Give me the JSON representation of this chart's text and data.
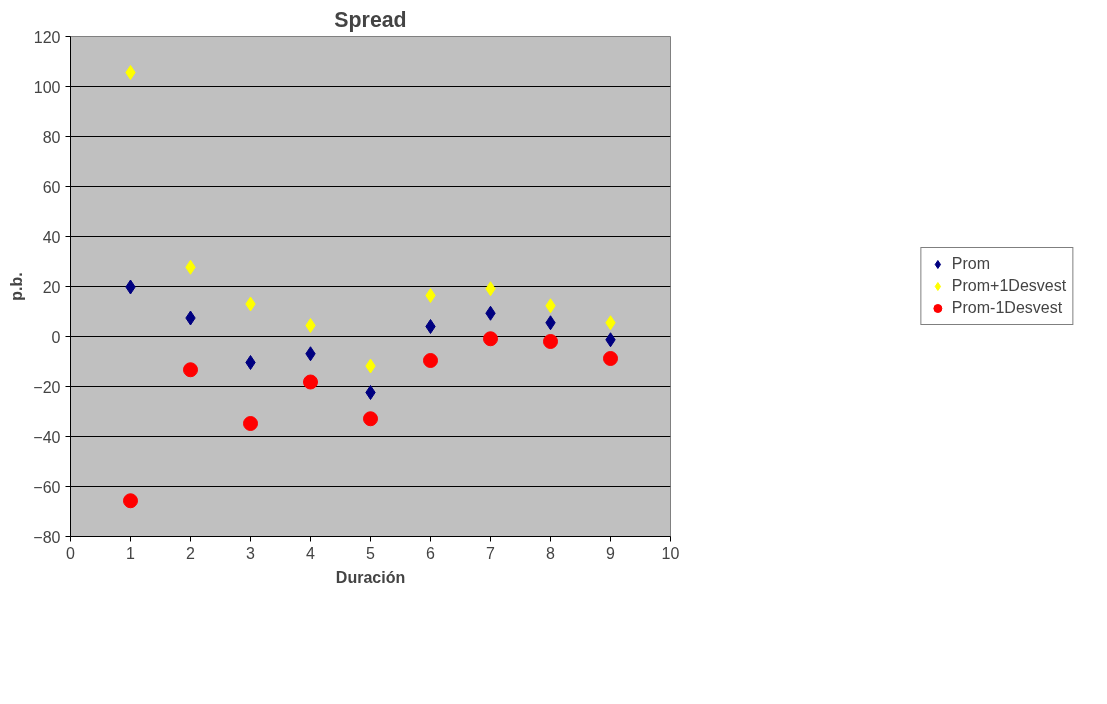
{
  "chart_data": {
    "type": "scatter",
    "title": "Spread",
    "xlabel": "Duración",
    "ylabel": "p.b.",
    "x": [
      1,
      2,
      3,
      4,
      5,
      6,
      7,
      8,
      9
    ],
    "series": [
      {
        "name": "Prom",
        "color": "#000080",
        "marker": "diamond",
        "values": [
          19.8,
          7.4,
          -10.4,
          -6.9,
          -22.4,
          4,
          9.3,
          5.5,
          -1.3
        ]
      },
      {
        "name": "Prom+1Desvest",
        "color": "#ffff00",
        "marker": "diamond",
        "values": [
          105.6,
          27.7,
          13,
          4.4,
          -11.8,
          16.4,
          19.1,
          12.3,
          5.5
        ]
      },
      {
        "name": "Prom-1Desvest",
        "color": "#ff0000",
        "marker": "circle",
        "values": [
          -65.7,
          -13.3,
          -34.8,
          -18.2,
          -32.9,
          -9.6,
          -0.9,
          -2,
          -8.8
        ]
      }
    ],
    "xlim": [
      0,
      10
    ],
    "xticks": [
      0,
      1,
      2,
      3,
      4,
      5,
      6,
      7,
      8,
      9,
      10
    ],
    "ylim": [
      -80,
      120
    ],
    "yticks": [
      -80,
      -60,
      -40,
      -20,
      0,
      20,
      40,
      60,
      80,
      100,
      120
    ],
    "grid": "y",
    "legend": "right"
  }
}
